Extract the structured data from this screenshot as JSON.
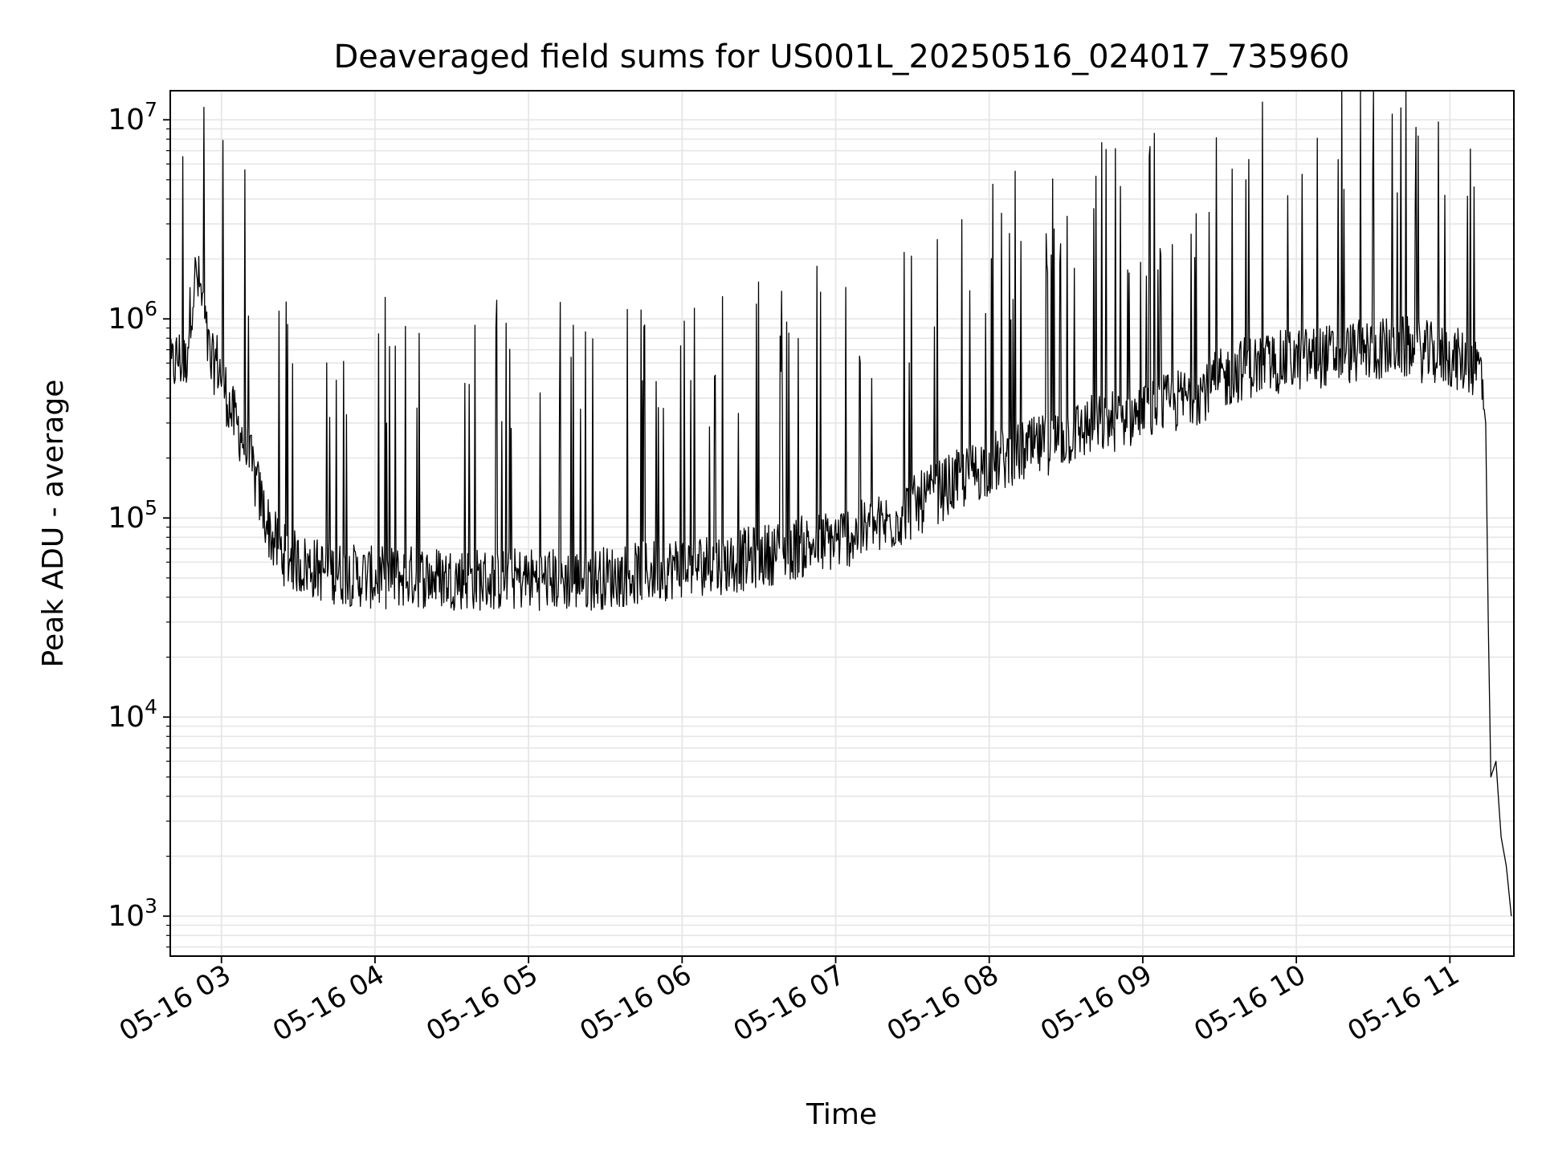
{
  "chart_data": {
    "type": "line",
    "title": "Deaveraged field sums for US001L_20250516_024017_735960",
    "xlabel": "Time",
    "ylabel": "Peak ADU - average",
    "y_scale": "log",
    "ylim": [
      630,
      14000000
    ],
    "xlim": [
      "05-16 02:40",
      "05-16 11:25"
    ],
    "grid": true,
    "line_color": "#000000",
    "grid_color": "#e6e6e6",
    "x_ticks": [
      {
        "time": "05-16 03:00",
        "label": "05-16 03"
      },
      {
        "time": "05-16 04:00",
        "label": "05-16 04"
      },
      {
        "time": "05-16 05:00",
        "label": "05-16 05"
      },
      {
        "time": "05-16 06:00",
        "label": "05-16 06"
      },
      {
        "time": "05-16 07:00",
        "label": "05-16 07"
      },
      {
        "time": "05-16 08:00",
        "label": "05-16 08"
      },
      {
        "time": "05-16 09:00",
        "label": "05-16 09"
      },
      {
        "time": "05-16 10:00",
        "label": "05-16 10"
      },
      {
        "time": "05-16 11:00",
        "label": "05-16 11"
      }
    ],
    "y_ticks": [
      {
        "value": 1000,
        "base": "10",
        "exp": "3"
      },
      {
        "value": 10000,
        "base": "10",
        "exp": "4"
      },
      {
        "value": 100000,
        "base": "10",
        "exp": "5"
      },
      {
        "value": 1000000,
        "base": "10",
        "exp": "6"
      },
      {
        "value": 10000000,
        "base": "10",
        "exp": "7"
      }
    ],
    "series": [
      {
        "points": [
          [
            "05-16 02:40",
            520000
          ],
          [
            "05-16 02:43",
            620000
          ],
          [
            "05-16 02:46",
            560000
          ],
          [
            "05-16 02:48",
            1100000
          ],
          [
            "05-16 02:50",
            1600000
          ],
          [
            "05-16 02:52",
            1300000
          ],
          [
            "05-16 02:54",
            800000
          ],
          [
            "05-16 02:56",
            550000
          ],
          [
            "05-16 02:58",
            600000
          ],
          [
            "05-16 03:00",
            500000
          ],
          [
            "05-16 03:04",
            320000
          ],
          [
            "05-16 03:08",
            250000
          ],
          [
            "05-16 03:12",
            170000
          ],
          [
            "05-16 03:16",
            110000
          ],
          [
            "05-16 03:20",
            75000
          ],
          [
            "05-16 03:25",
            62000
          ],
          [
            "05-16 03:30",
            57000
          ],
          [
            "05-16 03:40",
            52000
          ],
          [
            "05-16 03:50",
            50000
          ],
          [
            "05-16 04:00",
            48000
          ],
          [
            "05-16 04:15",
            49000
          ],
          [
            "05-16 04:30",
            48000
          ],
          [
            "05-16 04:45",
            47000
          ],
          [
            "05-16 05:00",
            48000
          ],
          [
            "05-16 05:20",
            47000
          ],
          [
            "05-16 05:40",
            50000
          ],
          [
            "05-16 06:00",
            55000
          ],
          [
            "05-16 06:20",
            58000
          ],
          [
            "05-16 06:40",
            66000
          ],
          [
            "05-16 07:00",
            75000
          ],
          [
            "05-16 07:20",
            90000
          ],
          [
            "05-16 07:40",
            130000
          ],
          [
            "05-16 08:00",
            180000
          ],
          [
            "05-16 08:20",
            220000
          ],
          [
            "05-16 08:40",
            280000
          ],
          [
            "05-16 09:00",
            320000
          ],
          [
            "05-16 09:20",
            400000
          ],
          [
            "05-16 09:40",
            550000
          ],
          [
            "05-16 10:00",
            600000
          ],
          [
            "05-16 10:20",
            650000
          ],
          [
            "05-16 10:40",
            700000
          ],
          [
            "05-16 11:00",
            620000
          ],
          [
            "05-16 11:12",
            550000
          ],
          [
            "05-16 11:14",
            300000
          ],
          [
            "05-16 11:15",
            30000
          ],
          [
            "05-16 11:16",
            5000
          ],
          [
            "05-16 11:18",
            6000
          ],
          [
            "05-16 11:20",
            2500
          ],
          [
            "05-16 11:22",
            1800
          ],
          [
            "05-16 11:24",
            1000
          ]
        ]
      }
    ]
  }
}
